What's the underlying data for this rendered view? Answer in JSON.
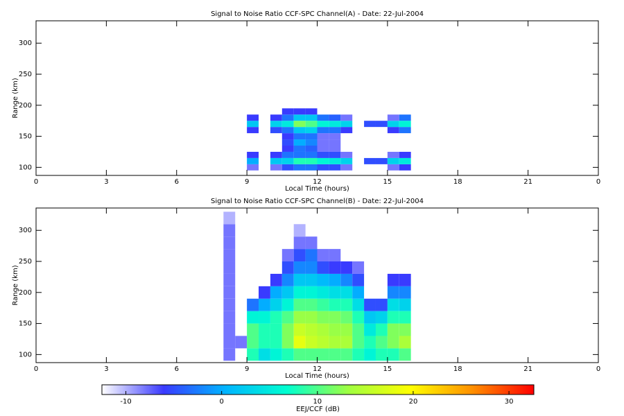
{
  "chart_data": [
    {
      "type": "heatmap",
      "title": "Signal to Noise Ratio CCF-SPC Channel(A) - Date: 22-Jul-2004",
      "x_label": "Local Time (hours)",
      "y_label": "Range (km)",
      "xlim": [
        0,
        24
      ],
      "xticks": [
        0,
        3,
        6,
        9,
        12,
        15,
        18,
        21,
        {
          "value": 24,
          "label": "0"
        }
      ],
      "ylim": [
        87,
        336
      ],
      "yticks": [
        100,
        150,
        200,
        250,
        300
      ],
      "x": [
        9.25,
        9.75,
        10.25,
        10.75,
        11.25,
        11.75,
        12.25,
        12.75,
        13.25,
        13.75,
        14.25,
        14.75,
        15.25,
        15.75
      ],
      "y": [
        100,
        110,
        120,
        130,
        140,
        150,
        160,
        170,
        180,
        190
      ],
      "values": [
        [
          -8,
          null,
          -8,
          -5,
          -3,
          -3,
          -5,
          -5,
          -8,
          null,
          null,
          null,
          -8,
          -6
        ],
        [
          0,
          null,
          2,
          3,
          8,
          8,
          6,
          5,
          3,
          null,
          -5,
          -5,
          3,
          5
        ],
        [
          -6,
          null,
          -6,
          -3,
          -3,
          -3,
          -5,
          -5,
          -8,
          null,
          null,
          null,
          -8,
          -6
        ],
        [
          null,
          null,
          null,
          -6,
          -3,
          -4,
          -8,
          -8,
          null,
          null,
          null,
          null,
          null,
          null
        ],
        [
          null,
          null,
          null,
          -5,
          0,
          -2,
          -8,
          -8,
          null,
          null,
          null,
          null,
          null,
          null
        ],
        [
          null,
          null,
          null,
          -6,
          -3,
          -3,
          -8,
          -8,
          null,
          null,
          null,
          null,
          null,
          null
        ],
        [
          -6,
          null,
          -5,
          -3,
          2,
          3,
          -3,
          -3,
          -6,
          null,
          null,
          null,
          -6,
          -3
        ],
        [
          2,
          null,
          3,
          5,
          12,
          10,
          6,
          5,
          3,
          null,
          -5,
          -5,
          3,
          6
        ],
        [
          -6,
          null,
          -6,
          -3,
          2,
          2,
          -3,
          -4,
          -8,
          null,
          null,
          null,
          -8,
          -3
        ],
        [
          null,
          null,
          null,
          -6,
          -6,
          -6,
          null,
          null,
          null,
          null,
          null,
          null,
          null,
          null
        ]
      ]
    },
    {
      "type": "heatmap",
      "title": "Signal to Noise Ratio CCF-SPC Channel(B) - Date: 22-Jul-2004",
      "x_label": "Local Time (hours)",
      "y_label": "Range (km)",
      "xlim": [
        0,
        24
      ],
      "xticks": [
        0,
        3,
        6,
        9,
        12,
        15,
        18,
        21,
        {
          "value": 24,
          "label": "0"
        }
      ],
      "ylim": [
        87,
        336
      ],
      "yticks": [
        100,
        150,
        200,
        250,
        300
      ],
      "x": [
        8.25,
        8.75,
        9.25,
        9.75,
        10.25,
        10.75,
        11.25,
        11.75,
        12.25,
        12.75,
        13.25,
        13.75,
        14.25,
        14.75,
        15.25,
        15.75
      ],
      "y": [
        100,
        120,
        140,
        160,
        180,
        200,
        220,
        240,
        260,
        280,
        300,
        320
      ],
      "values": [
        [
          -8,
          null,
          8,
          4,
          6,
          8,
          10,
          10,
          10,
          10,
          10,
          8,
          6,
          8,
          8,
          10
        ],
        [
          -8,
          -8,
          10,
          8,
          8,
          12,
          18,
          16,
          15,
          14,
          14,
          10,
          8,
          10,
          12,
          14
        ],
        [
          -8,
          null,
          10,
          8,
          8,
          12,
          16,
          15,
          14,
          13,
          13,
          10,
          5,
          8,
          12,
          12
        ],
        [
          -8,
          null,
          6,
          6,
          8,
          10,
          13,
          13,
          12,
          12,
          11,
          8,
          2,
          3,
          8,
          8
        ],
        [
          -8,
          null,
          -3,
          0,
          3,
          6,
          10,
          10,
          9,
          8,
          8,
          4,
          -5,
          -5,
          4,
          3
        ],
        [
          -8,
          null,
          null,
          -6,
          0,
          2,
          6,
          6,
          5,
          4,
          4,
          0,
          null,
          null,
          -2,
          -2
        ],
        [
          -8,
          null,
          null,
          null,
          -6,
          -2,
          2,
          2,
          1,
          0,
          -2,
          -5,
          null,
          null,
          -6,
          -6
        ],
        [
          -8,
          null,
          null,
          null,
          null,
          -5,
          -2,
          -2,
          -5,
          -6,
          -6,
          -8,
          null,
          null,
          null,
          null
        ],
        [
          -8,
          null,
          null,
          null,
          null,
          -8,
          -5,
          -3,
          -8,
          -8,
          null,
          null,
          null,
          null,
          null,
          null
        ],
        [
          -8,
          null,
          null,
          null,
          null,
          null,
          -8,
          -8,
          null,
          null,
          null,
          null,
          null,
          null,
          null,
          null
        ],
        [
          -8,
          null,
          null,
          null,
          null,
          null,
          -10,
          null,
          null,
          null,
          null,
          null,
          null,
          null,
          null,
          null
        ],
        [
          -10,
          null,
          null,
          null,
          null,
          null,
          null,
          null,
          null,
          null,
          null,
          null,
          null,
          null,
          null,
          null
        ]
      ]
    }
  ],
  "colorbar": {
    "label": "EEJ/CCF (dB)",
    "lim": [
      -12.5,
      32.6
    ],
    "ticks": [
      -10,
      0,
      10,
      20,
      30
    ],
    "colors": [
      "#ffffff",
      "#3a3aff",
      "#00b4ff",
      "#00ffd0",
      "#a0ff40",
      "#ffff00",
      "#ff9000",
      "#ff0000"
    ]
  }
}
